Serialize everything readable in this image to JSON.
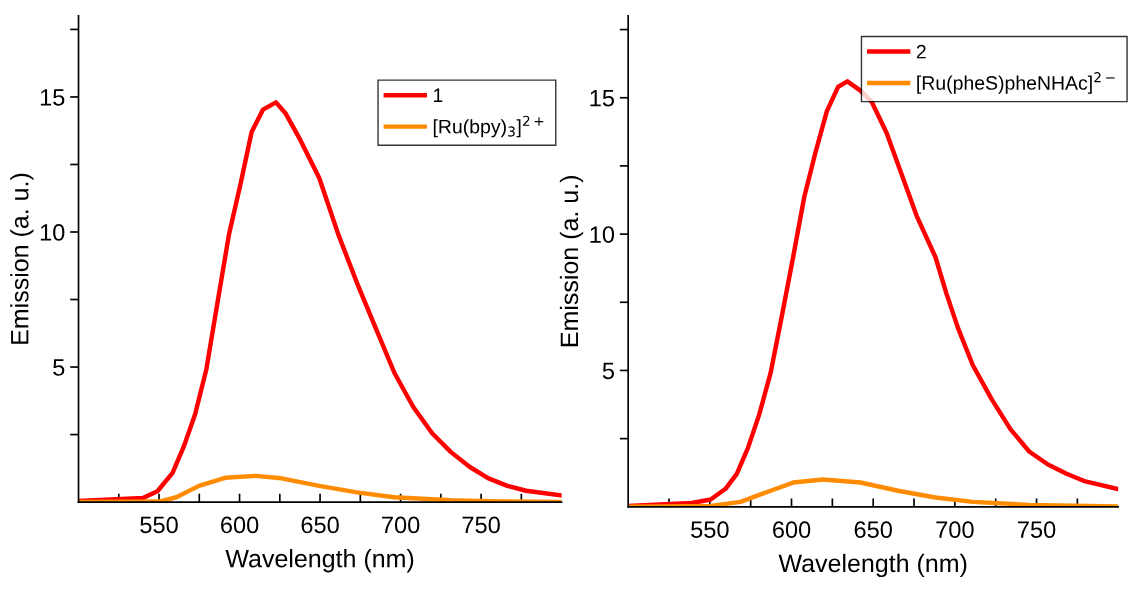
{
  "chart_data": [
    {
      "type": "line",
      "xlabel": "Wavelength (nm)",
      "ylabel": "Emission (a. u.)",
      "xlim": [
        500,
        800
      ],
      "ylim": [
        0,
        18
      ],
      "xticks": [
        {
          "value": 525,
          "label": null
        },
        550,
        {
          "value": 575,
          "label": null
        },
        600,
        {
          "value": 625,
          "label": null
        },
        650,
        {
          "value": 675,
          "label": null
        },
        700,
        {
          "value": 725,
          "label": null
        },
        750,
        {
          "value": 775,
          "label": null
        }
      ],
      "yticks": [
        {
          "value": 2.5,
          "label": null
        },
        5,
        {
          "value": 7.5,
          "label": null
        },
        10,
        {
          "value": 12.5,
          "label": null
        },
        15,
        {
          "value": 17.5,
          "label": null
        }
      ],
      "grid": false,
      "legend": "top right",
      "marker": "none",
      "line_style": "solid",
      "series": [
        {
          "name": "1",
          "color": "#ff0000",
          "x": [
            500,
            540,
            549,
            558.4,
            565.4,
            572.4,
            579.4,
            586.4,
            593.5,
            600.5,
            607.5,
            614.5,
            622.6,
            628.5,
            637.8,
            649.5,
            661.2,
            672.9,
            684.5,
            696.2,
            707.9,
            719.6,
            731.3,
            743,
            754.6,
            766.3,
            778,
            800
          ],
          "values": [
            0.04,
            0.15,
            0.4,
            1.08,
            2.06,
            3.25,
            4.92,
            7.42,
            9.93,
            11.75,
            13.7,
            14.53,
            14.8,
            14.4,
            13.4,
            12.0,
            9.93,
            8.12,
            6.45,
            4.78,
            3.52,
            2.55,
            1.85,
            1.3,
            0.88,
            0.6,
            0.42,
            0.25
          ]
        },
        {
          "name": "[Ru(bpy)$_{3}$]$^{2+}$",
          "color": "#ff8c00",
          "x": [
            500,
            550,
            560.7,
            574.8,
            591,
            609.8,
            626,
            649.5,
            672.9,
            696,
            731,
            754.6,
            800
          ],
          "values": [
            0,
            0.02,
            0.18,
            0.6,
            0.9,
            0.97,
            0.88,
            0.6,
            0.36,
            0.18,
            0.07,
            0.03,
            0
          ]
        }
      ]
    },
    {
      "type": "line",
      "xlabel": "Wavelength (nm)",
      "ylabel": "Emission (a. u.)",
      "xlim": [
        500,
        800
      ],
      "ylim": [
        0,
        18
      ],
      "xticks": [
        {
          "value": 525,
          "label": null
        },
        550,
        {
          "value": 575,
          "label": null
        },
        600,
        {
          "value": 625,
          "label": null
        },
        650,
        {
          "value": 675,
          "label": null
        },
        700,
        {
          "value": 725,
          "label": null
        },
        750,
        {
          "value": 775,
          "label": null
        }
      ],
      "yticks": [
        {
          "value": 2.5,
          "label": null
        },
        5,
        {
          "value": 7.5,
          "label": null
        },
        10,
        {
          "value": 12.5,
          "label": null
        },
        15,
        {
          "value": 17.5,
          "label": null
        }
      ],
      "grid": false,
      "legend": "top right",
      "marker": "none",
      "line_style": "solid",
      "series": [
        {
          "name": "2",
          "color": "#ff0000",
          "x": [
            500,
            539,
            550.5,
            559.6,
            566.5,
            573.4,
            580.3,
            587.2,
            594,
            601,
            607.8,
            614.7,
            621.6,
            628.5,
            634.2,
            642.2,
            649,
            658.3,
            667.5,
            676.6,
            688.1,
            695,
            701.9,
            711,
            722.5,
            734,
            745.5,
            757,
            768.4,
            779.9,
            799.1
          ],
          "values": [
            0.03,
            0.14,
            0.27,
            0.66,
            1.21,
            2.17,
            3.4,
            4.91,
            6.97,
            9.16,
            11.36,
            13.0,
            14.5,
            15.4,
            15.6,
            15.26,
            14.86,
            13.7,
            12.18,
            10.67,
            9.16,
            7.79,
            6.56,
            5.19,
            3.95,
            2.85,
            2.03,
            1.55,
            1.21,
            0.93,
            0.66
          ]
        },
        {
          "name": "[Ru(pheS)pheNHAc]$^{2−}$",
          "color": "#ff8c00",
          "x": [
            500,
            550.5,
            568.8,
            587.2,
            601,
            619.3,
            642.2,
            665.2,
            688.1,
            711,
            745.5,
            799
          ],
          "values": [
            0,
            0.03,
            0.18,
            0.59,
            0.89,
            1.0,
            0.89,
            0.59,
            0.34,
            0.18,
            0.07,
            0.01
          ]
        }
      ]
    }
  ]
}
